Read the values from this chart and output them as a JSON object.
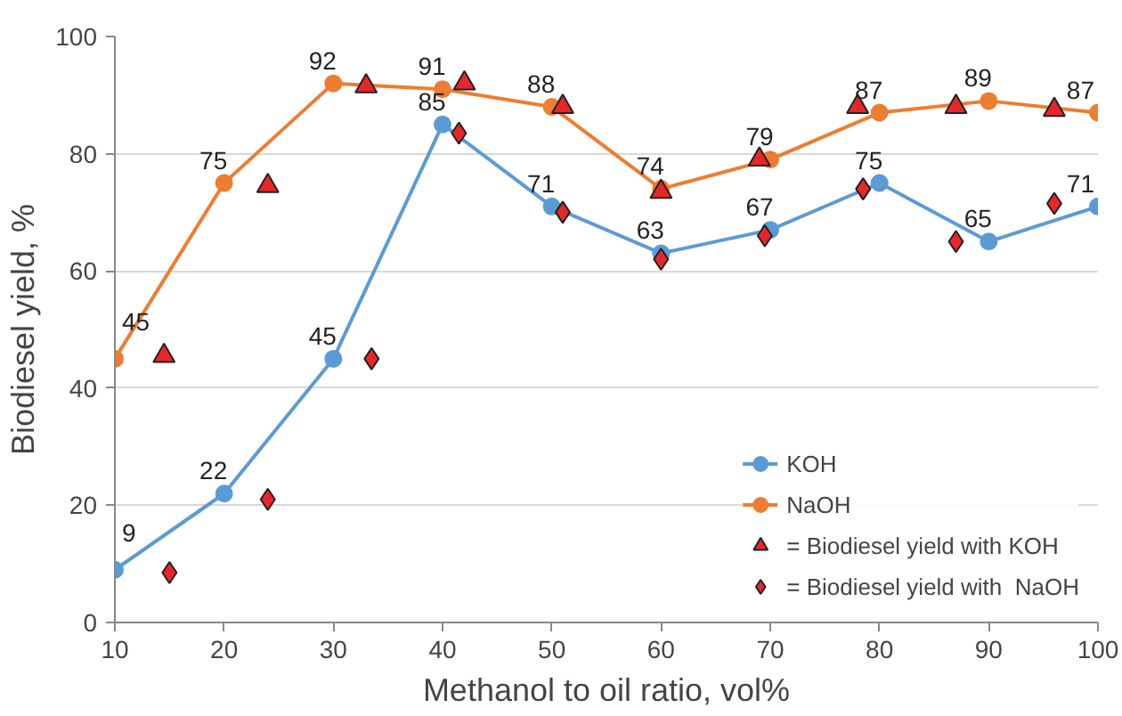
{
  "chart_data": {
    "type": "line",
    "xlabel": "Methanol to oil ratio, vol%",
    "ylabel": "Biodiesel yield, %",
    "xlim": [
      10,
      100
    ],
    "xticks": [
      10,
      20,
      30,
      40,
      50,
      60,
      70,
      80,
      90,
      100
    ],
    "ylim": [
      0,
      100
    ],
    "yticks": [
      0,
      20,
      40,
      60,
      80,
      100
    ],
    "grid": "y",
    "legend": "bottom right",
    "series": [
      {
        "name": "KOH",
        "marker": "circle",
        "color": "#5b9bd5",
        "x": [
          10,
          20,
          30,
          40,
          50,
          60,
          70,
          80,
          90,
          100
        ],
        "values": [
          9,
          22,
          45,
          85,
          71,
          63,
          67,
          75,
          65,
          71
        ],
        "value_labels": [
          "9",
          "22",
          "45",
          "85",
          "71",
          "63",
          "67",
          "75",
          "65",
          "71"
        ]
      },
      {
        "name": "NaOH",
        "marker": "circle",
        "color": "#ed7d31",
        "x": [
          10,
          20,
          30,
          40,
          50,
          60,
          70,
          80,
          90,
          100
        ],
        "values": [
          45,
          75,
          92,
          91,
          88,
          74,
          79,
          87,
          89,
          87
        ],
        "value_labels": [
          "45",
          "75",
          "92",
          "91",
          "88",
          "74",
          "79",
          "87",
          "89",
          "87"
        ]
      },
      {
        "name": "= Biodiesel yield with KOH",
        "type": "scatter",
        "marker": "triangle",
        "color": "#e8262a",
        "x": [
          14.5,
          24,
          33,
          42,
          51,
          60,
          69,
          78,
          87,
          96
        ],
        "values": [
          45.5,
          74.5,
          91.5,
          92,
          88,
          73.5,
          79,
          88,
          88,
          87.5
        ]
      },
      {
        "name": "= Biodiesel yield with  NaOH",
        "type": "scatter",
        "marker": "diamond",
        "color": "#e8262a",
        "x": [
          15,
          24,
          33.5,
          41.5,
          51,
          60,
          69.5,
          78.5,
          87,
          96
        ],
        "values": [
          8.5,
          21,
          45,
          83.5,
          70,
          62,
          66,
          74,
          65,
          71.5
        ]
      }
    ]
  }
}
